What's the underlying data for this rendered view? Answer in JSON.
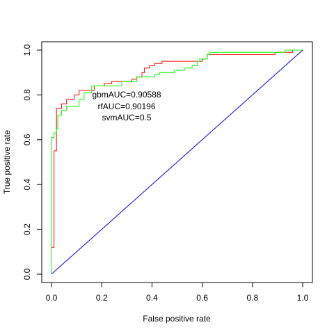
{
  "chart_data": {
    "type": "line",
    "title": "",
    "xlabel": "False positive rate",
    "ylabel": "True positive rate",
    "xlim": [
      0,
      1
    ],
    "ylim": [
      0,
      1
    ],
    "xticks": [
      "0.0",
      "0.2",
      "0.4",
      "0.6",
      "0.8",
      "1.0"
    ],
    "yticks": [
      "0.0",
      "0.2",
      "0.4",
      "0.6",
      "0.8",
      "1.0"
    ],
    "grid": false,
    "legend": "none",
    "annotations": [
      "gbmAUC=0.90588",
      "rfAUC=0.90196",
      "svmAUC=0.5"
    ],
    "series": [
      {
        "color": "#ff0000",
        "points": [
          [
            0,
            0
          ],
          [
            0,
            0.12
          ],
          [
            0.01,
            0.12
          ],
          [
            0.01,
            0.55
          ],
          [
            0.02,
            0.55
          ],
          [
            0.02,
            0.74
          ],
          [
            0.04,
            0.74
          ],
          [
            0.04,
            0.76
          ],
          [
            0.06,
            0.76
          ],
          [
            0.06,
            0.78
          ],
          [
            0.09,
            0.78
          ],
          [
            0.09,
            0.8
          ],
          [
            0.11,
            0.8
          ],
          [
            0.11,
            0.82
          ],
          [
            0.17,
            0.82
          ],
          [
            0.17,
            0.84
          ],
          [
            0.21,
            0.84
          ],
          [
            0.21,
            0.85
          ],
          [
            0.24,
            0.85
          ],
          [
            0.24,
            0.86
          ],
          [
            0.32,
            0.86
          ],
          [
            0.32,
            0.87
          ],
          [
            0.34,
            0.87
          ],
          [
            0.34,
            0.88
          ],
          [
            0.36,
            0.88
          ],
          [
            0.36,
            0.9
          ],
          [
            0.37,
            0.9
          ],
          [
            0.37,
            0.92
          ],
          [
            0.39,
            0.92
          ],
          [
            0.39,
            0.93
          ],
          [
            0.41,
            0.93
          ],
          [
            0.41,
            0.94
          ],
          [
            0.44,
            0.94
          ],
          [
            0.44,
            0.95
          ],
          [
            0.6,
            0.95
          ],
          [
            0.6,
            0.96
          ],
          [
            0.62,
            0.96
          ],
          [
            0.62,
            0.98
          ],
          [
            0.89,
            0.98
          ],
          [
            0.89,
            0.99
          ],
          [
            0.96,
            0.99
          ],
          [
            0.96,
            1.0
          ],
          [
            1,
            1
          ]
        ]
      },
      {
        "color": "#00ff00",
        "points": [
          [
            0,
            0
          ],
          [
            0,
            0.61
          ],
          [
            0.01,
            0.61
          ],
          [
            0.01,
            0.63
          ],
          [
            0.02,
            0.63
          ],
          [
            0.02,
            0.65
          ],
          [
            0.025,
            0.65
          ],
          [
            0.025,
            0.71
          ],
          [
            0.04,
            0.71
          ],
          [
            0.04,
            0.73
          ],
          [
            0.06,
            0.73
          ],
          [
            0.06,
            0.75
          ],
          [
            0.11,
            0.75
          ],
          [
            0.11,
            0.78
          ],
          [
            0.13,
            0.78
          ],
          [
            0.13,
            0.81
          ],
          [
            0.16,
            0.81
          ],
          [
            0.16,
            0.84
          ],
          [
            0.28,
            0.84
          ],
          [
            0.28,
            0.86
          ],
          [
            0.34,
            0.86
          ],
          [
            0.34,
            0.88
          ],
          [
            0.41,
            0.88
          ],
          [
            0.41,
            0.89
          ],
          [
            0.43,
            0.89
          ],
          [
            0.43,
            0.9
          ],
          [
            0.49,
            0.9
          ],
          [
            0.49,
            0.91
          ],
          [
            0.53,
            0.91
          ],
          [
            0.53,
            0.92
          ],
          [
            0.56,
            0.92
          ],
          [
            0.56,
            0.93
          ],
          [
            0.58,
            0.93
          ],
          [
            0.58,
            0.95
          ],
          [
            0.59,
            0.95
          ],
          [
            0.59,
            0.96
          ],
          [
            0.62,
            0.96
          ],
          [
            0.62,
            0.98
          ],
          [
            0.63,
            0.98
          ],
          [
            0.63,
            0.99
          ],
          [
            0.93,
            0.99
          ],
          [
            0.93,
            1.0
          ],
          [
            1,
            1
          ]
        ]
      },
      {
        "color": "#0000ff",
        "points": [
          [
            0,
            0
          ],
          [
            1,
            1
          ]
        ]
      }
    ]
  }
}
